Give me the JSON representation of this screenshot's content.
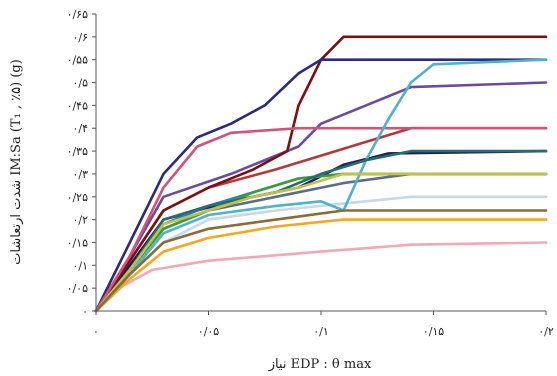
{
  "chart_data": {
    "type": "line",
    "xlabel": "EDP : θ max نیاز",
    "ylabel": "شدت ارتعاشات IM:Sa (T₁ , ٪۵) (g)",
    "xlim": [
      0,
      0.2
    ],
    "ylim": [
      0,
      0.65
    ],
    "x_tick_labels": [
      "۰",
      "۰/۰۵",
      "۰/۱",
      "۰/۱۵",
      "۰/۲"
    ],
    "y_tick_labels": [
      "۰",
      "۰/۰۵",
      "۰/۱",
      "۰/۱۵",
      "۰/۲",
      "۰/۲۵",
      "۰/۳",
      "۰/۳۵",
      "۰/۴",
      "۰/۴۵",
      "۰/۵",
      "۰/۵۵",
      "۰/۶",
      "۰/۶۵"
    ],
    "x_ticks": [
      0,
      0.05,
      0.1,
      0.15,
      0.2
    ],
    "y_ticks": [
      0,
      0.05,
      0.1,
      0.15,
      0.2,
      0.25,
      0.3,
      0.35,
      0.4,
      0.45,
      0.5,
      0.55,
      0.6,
      0.65
    ],
    "grid": false,
    "series": [
      {
        "color": "#f2a9b7",
        "points": [
          [
            0,
            0
          ],
          [
            0.01,
            0.05
          ],
          [
            0.025,
            0.09
          ],
          [
            0.05,
            0.11
          ],
          [
            0.1,
            0.13
          ],
          [
            0.14,
            0.145
          ],
          [
            0.2,
            0.15
          ]
        ]
      },
      {
        "color": "#f5a623",
        "points": [
          [
            0,
            0
          ],
          [
            0.015,
            0.07
          ],
          [
            0.03,
            0.13
          ],
          [
            0.05,
            0.16
          ],
          [
            0.08,
            0.185
          ],
          [
            0.11,
            0.2
          ],
          [
            0.2,
            0.2
          ]
        ]
      },
      {
        "color": "#c8d8e8",
        "points": [
          [
            0,
            0
          ],
          [
            0.015,
            0.08
          ],
          [
            0.03,
            0.15
          ],
          [
            0.05,
            0.2
          ],
          [
            0.08,
            0.22
          ],
          [
            0.11,
            0.235
          ],
          [
            0.14,
            0.25
          ],
          [
            0.2,
            0.25
          ]
        ]
      },
      {
        "color": "#5a6e8c",
        "points": [
          [
            0,
            0
          ],
          [
            0.015,
            0.09
          ],
          [
            0.03,
            0.18
          ],
          [
            0.05,
            0.22
          ],
          [
            0.08,
            0.25
          ],
          [
            0.11,
            0.28
          ],
          [
            0.14,
            0.3
          ],
          [
            0.2,
            0.3
          ]
        ]
      },
      {
        "color": "#1f1f5a",
        "points": [
          [
            0,
            0
          ],
          [
            0.015,
            0.1
          ],
          [
            0.03,
            0.2
          ],
          [
            0.06,
            0.24
          ],
          [
            0.09,
            0.27
          ],
          [
            0.11,
            0.32
          ],
          [
            0.13,
            0.345
          ],
          [
            0.2,
            0.35
          ]
        ]
      },
      {
        "color": "#b23a3a",
        "points": [
          [
            0,
            0
          ],
          [
            0.015,
            0.11
          ],
          [
            0.03,
            0.22
          ],
          [
            0.05,
            0.27
          ],
          [
            0.08,
            0.31
          ],
          [
            0.1,
            0.34
          ],
          [
            0.12,
            0.37
          ],
          [
            0.14,
            0.4
          ],
          [
            0.2,
            0.4
          ]
        ]
      },
      {
        "color": "#6a4c9c",
        "points": [
          [
            0,
            0
          ],
          [
            0.015,
            0.12
          ],
          [
            0.03,
            0.25
          ],
          [
            0.06,
            0.3
          ],
          [
            0.09,
            0.36
          ],
          [
            0.1,
            0.41
          ],
          [
            0.12,
            0.45
          ],
          [
            0.14,
            0.49
          ],
          [
            0.2,
            0.5
          ]
        ]
      },
      {
        "color": "#7a1010",
        "points": [
          [
            0,
            0
          ],
          [
            0.015,
            0.11
          ],
          [
            0.03,
            0.22
          ],
          [
            0.05,
            0.27
          ],
          [
            0.07,
            0.31
          ],
          [
            0.085,
            0.35
          ],
          [
            0.09,
            0.45
          ],
          [
            0.095,
            0.5
          ],
          [
            0.1,
            0.55
          ],
          [
            0.11,
            0.6
          ],
          [
            0.2,
            0.6
          ]
        ]
      },
      {
        "color": "#2c2a7a",
        "points": [
          [
            0,
            0
          ],
          [
            0.015,
            0.15
          ],
          [
            0.03,
            0.3
          ],
          [
            0.045,
            0.38
          ],
          [
            0.06,
            0.41
          ],
          [
            0.075,
            0.45
          ],
          [
            0.09,
            0.52
          ],
          [
            0.1,
            0.55
          ],
          [
            0.2,
            0.55
          ]
        ]
      },
      {
        "color": "#d2527a",
        "points": [
          [
            0,
            0
          ],
          [
            0.015,
            0.12
          ],
          [
            0.03,
            0.27
          ],
          [
            0.045,
            0.36
          ],
          [
            0.06,
            0.39
          ],
          [
            0.09,
            0.4
          ],
          [
            0.2,
            0.4
          ]
        ]
      },
      {
        "color": "#4fb3c8",
        "points": [
          [
            0,
            0
          ],
          [
            0.015,
            0.08
          ],
          [
            0.03,
            0.17
          ],
          [
            0.05,
            0.21
          ],
          [
            0.08,
            0.23
          ],
          [
            0.1,
            0.24
          ],
          [
            0.11,
            0.22
          ],
          [
            0.12,
            0.33
          ],
          [
            0.13,
            0.42
          ],
          [
            0.14,
            0.5
          ],
          [
            0.15,
            0.54
          ],
          [
            0.2,
            0.55
          ]
        ]
      },
      {
        "color": "#2e7ec4",
        "points": [
          [
            0,
            0
          ],
          [
            0.015,
            0.09
          ],
          [
            0.03,
            0.19
          ],
          [
            0.05,
            0.23
          ],
          [
            0.07,
            0.26
          ],
          [
            0.09,
            0.29
          ],
          [
            0.11,
            0.3
          ],
          [
            0.2,
            0.3
          ]
        ]
      },
      {
        "color": "#3a9c3a",
        "points": [
          [
            0,
            0
          ],
          [
            0.015,
            0.09
          ],
          [
            0.03,
            0.18
          ],
          [
            0.05,
            0.22
          ],
          [
            0.07,
            0.26
          ],
          [
            0.09,
            0.29
          ],
          [
            0.11,
            0.3
          ],
          [
            0.2,
            0.3
          ]
        ]
      },
      {
        "color": "#2a6b6b",
        "points": [
          [
            0,
            0
          ],
          [
            0.015,
            0.09
          ],
          [
            0.03,
            0.2
          ],
          [
            0.05,
            0.23
          ],
          [
            0.08,
            0.26
          ],
          [
            0.1,
            0.3
          ],
          [
            0.12,
            0.33
          ],
          [
            0.14,
            0.35
          ],
          [
            0.2,
            0.35
          ]
        ]
      },
      {
        "color": "#c2c24a",
        "points": [
          [
            0,
            0
          ],
          [
            0.015,
            0.09
          ],
          [
            0.03,
            0.19
          ],
          [
            0.05,
            0.22
          ],
          [
            0.07,
            0.25
          ],
          [
            0.09,
            0.27
          ],
          [
            0.11,
            0.3
          ],
          [
            0.2,
            0.3
          ]
        ]
      },
      {
        "color": "#8a6b3a",
        "points": [
          [
            0,
            0
          ],
          [
            0.015,
            0.08
          ],
          [
            0.03,
            0.15
          ],
          [
            0.05,
            0.18
          ],
          [
            0.08,
            0.2
          ],
          [
            0.11,
            0.22
          ],
          [
            0.2,
            0.22
          ]
        ]
      }
    ]
  }
}
